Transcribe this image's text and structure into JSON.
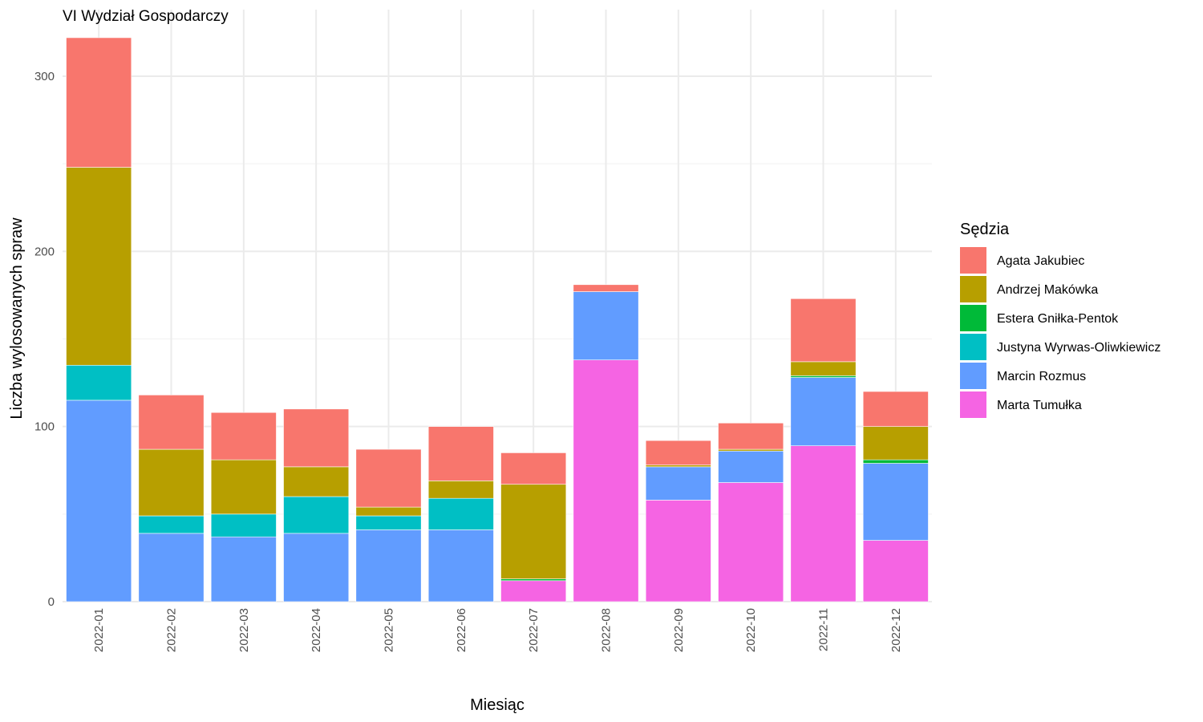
{
  "chart_data": {
    "type": "bar",
    "stacked": true,
    "title": "VI Wydział Gospodarczy",
    "xlabel": "Miesiąc",
    "ylabel": "Liczba wylosowanych spraw",
    "ylim": [
      0,
      330
    ],
    "yticks": [
      0,
      100,
      200,
      300
    ],
    "grid": true,
    "legend": {
      "title": "Sędzia",
      "position": "right"
    },
    "categories": [
      "2022-01",
      "2022-02",
      "2022-03",
      "2022-04",
      "2022-05",
      "2022-06",
      "2022-07",
      "2022-08",
      "2022-09",
      "2022-10",
      "2022-11",
      "2022-12"
    ],
    "series": [
      {
        "name": "Marta Tumułka",
        "color": "#F564E3",
        "values": [
          0,
          0,
          0,
          0,
          0,
          0,
          12,
          138,
          58,
          68,
          89,
          35
        ]
      },
      {
        "name": "Marcin Rozmus",
        "color": "#619CFF",
        "values": [
          115,
          39,
          37,
          39,
          41,
          41,
          0,
          39,
          19,
          18,
          39,
          44
        ]
      },
      {
        "name": "Justyna Wyrwas-Oliwkiewicz",
        "color": "#00BFC4",
        "values": [
          20,
          10,
          13,
          21,
          8,
          18,
          0,
          0,
          0,
          0,
          0,
          0
        ]
      },
      {
        "name": "Estera Gniłka-Pentok",
        "color": "#00BA38",
        "values": [
          0,
          0,
          0,
          0,
          0,
          0,
          1,
          0,
          0,
          0,
          1,
          2
        ]
      },
      {
        "name": "Andrzej Makówka",
        "color": "#B79F00",
        "values": [
          113,
          38,
          31,
          17,
          5,
          10,
          54,
          0,
          1,
          1,
          8,
          19
        ]
      },
      {
        "name": "Agata Jakubiec",
        "color": "#F8766D",
        "values": [
          74,
          31,
          27,
          33,
          33,
          31,
          18,
          4,
          14,
          15,
          36,
          20
        ]
      }
    ],
    "legend_order": [
      "Agata Jakubiec",
      "Andrzej Makówka",
      "Estera Gniłka-Pentok",
      "Justyna Wyrwas-Oliwkiewicz",
      "Marcin Rozmus",
      "Marta Tumułka"
    ]
  }
}
